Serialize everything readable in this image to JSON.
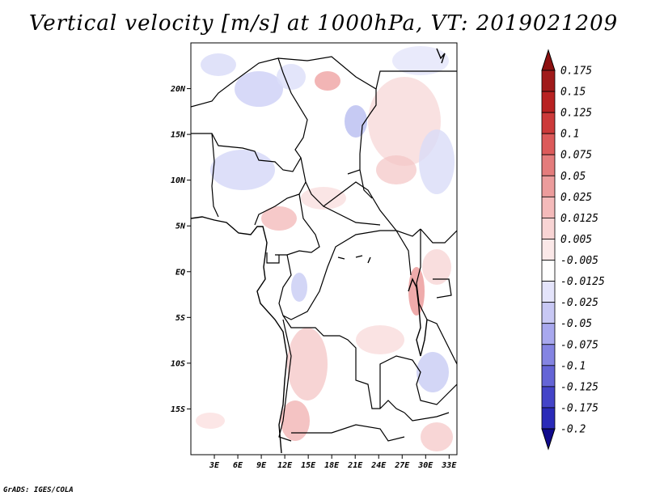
{
  "title": "Vertical velocity [m/s] at 1000hPa, VT: 2019021209",
  "credit": "GrADS: IGES/COLA",
  "map": {
    "lon_range": [
      0,
      34
    ],
    "lat_range": [
      -20,
      25
    ],
    "lat_ticks": [
      {
        "value": 20,
        "label": "20N"
      },
      {
        "value": 15,
        "label": "15N"
      },
      {
        "value": 10,
        "label": "10N"
      },
      {
        "value": 5,
        "label": "5N"
      },
      {
        "value": 0,
        "label": "EQ"
      },
      {
        "value": -5,
        "label": "5S"
      },
      {
        "value": -10,
        "label": "10S"
      },
      {
        "value": -15,
        "label": "15S"
      }
    ],
    "lon_ticks": [
      {
        "value": 3,
        "label": "3E"
      },
      {
        "value": 6,
        "label": "6E"
      },
      {
        "value": 9,
        "label": "9E"
      },
      {
        "value": 12,
        "label": "12E"
      },
      {
        "value": 15,
        "label": "15E"
      },
      {
        "value": 18,
        "label": "18E"
      },
      {
        "value": 21,
        "label": "21E"
      },
      {
        "value": 24,
        "label": "24E"
      },
      {
        "value": 27,
        "label": "27E"
      },
      {
        "value": 30,
        "label": "30E"
      },
      {
        "value": 33,
        "label": "33E"
      }
    ]
  },
  "colorbar": {
    "levels": [
      {
        "label": "0.175",
        "color": "#a01a1a"
      },
      {
        "label": "0.15",
        "color": "#b82222"
      },
      {
        "label": "0.125",
        "color": "#cc3a3a"
      },
      {
        "label": "0.1",
        "color": "#dc5a5a"
      },
      {
        "label": "0.075",
        "color": "#e47c7c"
      },
      {
        "label": "0.05",
        "color": "#ec9c9c"
      },
      {
        "label": "0.025",
        "color": "#f4baba"
      },
      {
        "label": "0.0125",
        "color": "#f8d4d4"
      },
      {
        "label": "0.005",
        "color": "#fbe8e8"
      },
      {
        "label": "-0.005",
        "color": "#ffffff"
      },
      {
        "label": "-0.0125",
        "color": "#e4e4fb"
      },
      {
        "label": "-0.025",
        "color": "#c8c8f4"
      },
      {
        "label": "-0.05",
        "color": "#a8a8ee"
      },
      {
        "label": "-0.075",
        "color": "#8484e2"
      },
      {
        "label": "-0.1",
        "color": "#6464d6"
      },
      {
        "label": "-0.125",
        "color": "#4444c8"
      },
      {
        "label": "-0.175",
        "color": "#2a2ab8"
      },
      {
        "label": "-0.2",
        "color": "#1a1aa0"
      }
    ],
    "top_color": "#8c1010",
    "bottom_color": "#100a8c"
  }
}
